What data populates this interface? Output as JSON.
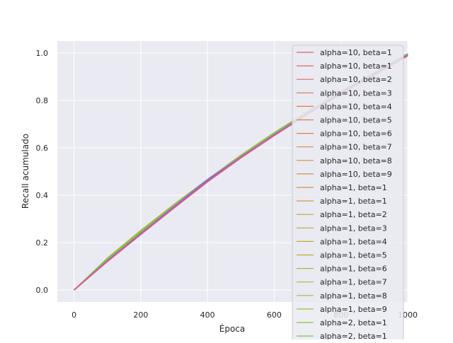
{
  "chart_data": {
    "type": "line",
    "title": "",
    "xlabel": "Época",
    "ylabel": "Recall acumulado",
    "xlim": [
      -50,
      1000
    ],
    "ylim": [
      -0.05,
      1.05
    ],
    "xticks": [
      0,
      200,
      400,
      600,
      800,
      1000
    ],
    "yticks": [
      0.0,
      0.2,
      0.4,
      0.6,
      0.8,
      1.0
    ],
    "xtick_labels": [
      "0",
      "200",
      "400",
      "600",
      "800",
      "1000"
    ],
    "ytick_labels": [
      "0.0",
      "0.2",
      "0.4",
      "0.6",
      "0.8",
      "1.0"
    ],
    "grid": true,
    "legend_position": "top-right",
    "series": [
      {
        "name": "alpha=10, beta=1",
        "color": "#e0615b",
        "x": [
          0,
          100,
          200,
          300,
          400,
          500,
          600,
          700,
          800,
          900,
          1000
        ],
        "y": [
          0.0,
          0.13,
          0.245,
          0.355,
          0.46,
          0.565,
          0.66,
          0.75,
          0.835,
          0.915,
          0.995
        ]
      },
      {
        "name": "alpha=10, beta=1",
        "color": "#e0665a",
        "x": [
          0,
          100,
          200,
          300,
          400,
          500,
          600,
          700,
          800,
          900,
          1000
        ],
        "y": [
          0.0,
          0.128,
          0.243,
          0.353,
          0.458,
          0.563,
          0.658,
          0.748,
          0.833,
          0.913,
          0.993
        ]
      },
      {
        "name": "alpha=10, beta=2",
        "color": "#df6b58",
        "x": [
          0,
          100,
          200,
          300,
          400,
          500,
          600,
          700,
          800,
          900,
          1000
        ],
        "y": [
          0.0,
          0.132,
          0.247,
          0.357,
          0.462,
          0.566,
          0.661,
          0.751,
          0.836,
          0.916,
          0.996
        ]
      },
      {
        "name": "alpha=10, beta=3",
        "color": "#de7156",
        "x": [
          0,
          100,
          200,
          300,
          400,
          500,
          600,
          700,
          800,
          900,
          1000
        ],
        "y": [
          0.0,
          0.129,
          0.244,
          0.354,
          0.459,
          0.564,
          0.659,
          0.749,
          0.834,
          0.914,
          0.994
        ]
      },
      {
        "name": "alpha=10, beta=4",
        "color": "#dc7752",
        "x": [
          0,
          100,
          200,
          300,
          400,
          500,
          600,
          700,
          800,
          900,
          1000
        ],
        "y": [
          0.0,
          0.131,
          0.246,
          0.356,
          0.461,
          0.565,
          0.66,
          0.75,
          0.835,
          0.915,
          0.995
        ]
      },
      {
        "name": "alpha=10, beta=5",
        "color": "#da7d4f",
        "x": [
          0,
          100,
          200,
          300,
          400,
          500,
          600,
          700,
          800,
          900,
          1000
        ],
        "y": [
          0.0,
          0.127,
          0.242,
          0.352,
          0.457,
          0.562,
          0.657,
          0.747,
          0.832,
          0.912,
          0.992
        ]
      },
      {
        "name": "alpha=10, beta=6",
        "color": "#d8834b",
        "x": [
          0,
          100,
          200,
          300,
          400,
          500,
          600,
          700,
          800,
          900,
          1000
        ],
        "y": [
          0.0,
          0.133,
          0.248,
          0.358,
          0.463,
          0.567,
          0.662,
          0.752,
          0.837,
          0.917,
          0.997
        ]
      },
      {
        "name": "alpha=10, beta=7",
        "color": "#d58946",
        "x": [
          0,
          100,
          200,
          300,
          400,
          500,
          600,
          700,
          800,
          900,
          1000
        ],
        "y": [
          0.0,
          0.13,
          0.245,
          0.355,
          0.46,
          0.565,
          0.66,
          0.75,
          0.835,
          0.915,
          0.995
        ]
      },
      {
        "name": "alpha=10, beta=8",
        "color": "#d28f42",
        "x": [
          0,
          100,
          200,
          300,
          400,
          500,
          600,
          700,
          800,
          900,
          1000
        ],
        "y": [
          0.0,
          0.128,
          0.243,
          0.353,
          0.458,
          0.564,
          0.659,
          0.749,
          0.834,
          0.914,
          0.994
        ]
      },
      {
        "name": "alpha=10, beta=9",
        "color": "#cf953d",
        "x": [
          0,
          100,
          200,
          300,
          400,
          500,
          600,
          700,
          800,
          900,
          1000
        ],
        "y": [
          0.0,
          0.131,
          0.246,
          0.356,
          0.461,
          0.566,
          0.661,
          0.751,
          0.836,
          0.916,
          0.996
        ]
      },
      {
        "name": "alpha=1, beta=1",
        "color": "#cb9b38",
        "x": [
          0,
          100,
          200,
          300,
          400,
          500,
          600,
          700,
          800,
          900,
          1000
        ],
        "y": [
          0.0,
          0.134,
          0.25,
          0.36,
          0.465,
          0.568,
          0.663,
          0.752,
          0.836,
          0.916,
          0.996
        ]
      },
      {
        "name": "alpha=1, beta=1",
        "color": "#c7a033",
        "x": [
          0,
          100,
          200,
          300,
          400,
          500,
          600,
          700,
          800,
          900,
          1000
        ],
        "y": [
          0.0,
          0.129,
          0.244,
          0.354,
          0.459,
          0.564,
          0.659,
          0.749,
          0.834,
          0.914,
          0.994
        ]
      },
      {
        "name": "alpha=1, beta=2",
        "color": "#c2a62f",
        "x": [
          0,
          100,
          200,
          300,
          400,
          500,
          600,
          700,
          800,
          900,
          1000
        ],
        "y": [
          0.0,
          0.132,
          0.247,
          0.357,
          0.462,
          0.566,
          0.661,
          0.751,
          0.836,
          0.916,
          0.996
        ]
      },
      {
        "name": "alpha=1, beta=3",
        "color": "#bdab2c",
        "x": [
          0,
          100,
          200,
          300,
          400,
          500,
          600,
          700,
          800,
          900,
          1000
        ],
        "y": [
          0.0,
          0.128,
          0.243,
          0.353,
          0.458,
          0.563,
          0.658,
          0.748,
          0.833,
          0.913,
          0.993
        ]
      },
      {
        "name": "alpha=1, beta=4",
        "color": "#b7b02a",
        "x": [
          0,
          100,
          200,
          300,
          400,
          500,
          600,
          700,
          800,
          900,
          1000
        ],
        "y": [
          0.0,
          0.135,
          0.252,
          0.362,
          0.467,
          0.569,
          0.664,
          0.753,
          0.837,
          0.917,
          0.997
        ]
      },
      {
        "name": "alpha=1, beta=5",
        "color": "#b1b52b",
        "x": [
          0,
          100,
          200,
          300,
          400,
          500,
          600,
          700,
          800,
          900,
          1000
        ],
        "y": [
          0.0,
          0.13,
          0.245,
          0.355,
          0.46,
          0.565,
          0.66,
          0.75,
          0.835,
          0.915,
          0.995
        ]
      },
      {
        "name": "alpha=1, beta=6",
        "color": "#aab92d",
        "x": [
          0,
          100,
          200,
          300,
          400,
          500,
          600,
          700,
          800,
          900,
          1000
        ],
        "y": [
          0.0,
          0.133,
          0.249,
          0.359,
          0.464,
          0.567,
          0.662,
          0.751,
          0.836,
          0.916,
          0.996
        ]
      },
      {
        "name": "alpha=1, beta=7",
        "color": "#a2bd31",
        "x": [
          0,
          100,
          200,
          300,
          400,
          500,
          600,
          700,
          800,
          900,
          1000
        ],
        "y": [
          0.0,
          0.131,
          0.246,
          0.356,
          0.461,
          0.565,
          0.66,
          0.75,
          0.835,
          0.915,
          0.995
        ]
      },
      {
        "name": "alpha=1, beta=8",
        "color": "#99c136",
        "x": [
          0,
          100,
          200,
          300,
          400,
          500,
          600,
          700,
          800,
          900,
          1000
        ],
        "y": [
          0.0,
          0.129,
          0.244,
          0.354,
          0.459,
          0.564,
          0.659,
          0.749,
          0.834,
          0.914,
          0.994
        ]
      },
      {
        "name": "alpha=1, beta=9",
        "color": "#90c43c",
        "x": [
          0,
          100,
          200,
          300,
          400,
          500,
          600,
          700,
          800,
          900,
          1000
        ],
        "y": [
          0.0,
          0.132,
          0.247,
          0.357,
          0.462,
          0.566,
          0.661,
          0.751,
          0.836,
          0.916,
          0.996
        ]
      },
      {
        "name": "alpha=2, beta=1",
        "color": "#86c742",
        "x": [
          0,
          100,
          200,
          300,
          400,
          500,
          600,
          700,
          800,
          900,
          1000
        ],
        "y": [
          0.0,
          0.13,
          0.245,
          0.355,
          0.46,
          0.565,
          0.66,
          0.75,
          0.835,
          0.915,
          0.995
        ]
      },
      {
        "name": "alpha=2, beta=1",
        "color": "#7bc948",
        "x": [
          0,
          100,
          200,
          300,
          400,
          500,
          600,
          700,
          800,
          900,
          1000
        ],
        "y": [
          0.0,
          0.131,
          0.246,
          0.356,
          0.461,
          0.565,
          0.66,
          0.75,
          0.835,
          0.915,
          0.995
        ]
      },
      {
        "name": "",
        "color": "#4db6a8",
        "x": [
          0,
          100,
          200,
          300,
          400,
          500,
          600,
          700,
          800,
          900,
          1000
        ],
        "y": [
          0.0,
          0.125,
          0.24,
          0.352,
          0.464,
          0.562,
          0.656,
          0.746,
          0.832,
          0.912,
          0.992
        ]
      },
      {
        "name": "",
        "color": "#5b8fd4",
        "x": [
          0,
          100,
          200,
          300,
          400,
          500,
          600,
          700,
          800,
          900,
          1000
        ],
        "y": [
          0.0,
          0.124,
          0.239,
          0.354,
          0.466,
          0.561,
          0.655,
          0.745,
          0.831,
          0.911,
          0.991
        ]
      },
      {
        "name": "",
        "color": "#8a63d2",
        "x": [
          0,
          100,
          200,
          300,
          400,
          500,
          600,
          700,
          800,
          900,
          1000
        ],
        "y": [
          0.0,
          0.123,
          0.238,
          0.35,
          0.463,
          0.56,
          0.654,
          0.744,
          0.83,
          0.91,
          0.99
        ]
      },
      {
        "name": "",
        "color": "#c24fbf",
        "x": [
          0,
          100,
          200,
          300,
          400,
          500,
          600,
          700,
          800,
          900,
          1000
        ],
        "y": [
          0.0,
          0.122,
          0.236,
          0.348,
          0.458,
          0.559,
          0.653,
          0.743,
          0.829,
          0.909,
          0.989
        ]
      },
      {
        "name": "",
        "color": "#e35aa0",
        "x": [
          0,
          100,
          200,
          300,
          400,
          500,
          600,
          700,
          800,
          900,
          1000
        ],
        "y": [
          0.0,
          0.121,
          0.235,
          0.347,
          0.457,
          0.558,
          0.652,
          0.742,
          0.828,
          0.908,
          0.988
        ]
      },
      {
        "name": "",
        "color": "#e8528a",
        "x": [
          0,
          100,
          200,
          300,
          400,
          500,
          600,
          700,
          800,
          900,
          1000
        ],
        "y": [
          0.0,
          0.12,
          0.234,
          0.346,
          0.456,
          0.557,
          0.651,
          0.741,
          0.827,
          0.907,
          0.987
        ]
      }
    ]
  }
}
